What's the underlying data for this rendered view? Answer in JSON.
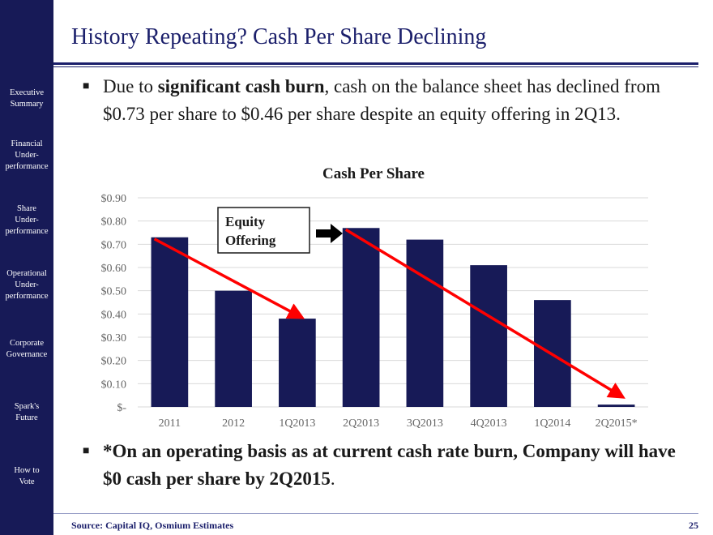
{
  "sidebar": {
    "items": [
      {
        "lines": [
          "Executive",
          "Summary"
        ]
      },
      {
        "lines": [
          "Financial",
          "Under-",
          "performance"
        ]
      },
      {
        "lines": [
          "Share",
          "Under-",
          "performance"
        ]
      },
      {
        "lines": [
          "Operational",
          "Under-",
          "performance"
        ]
      },
      {
        "lines": [
          "Corporate",
          "Governance"
        ]
      },
      {
        "lines": [
          "Spark's",
          "Future"
        ]
      },
      {
        "lines": [
          "How to",
          "Vote"
        ]
      }
    ]
  },
  "slide": {
    "title": "History Repeating? Cash Per Share Declining",
    "bullet1": {
      "pre": "Due to ",
      "bold": "significant cash burn",
      "post": ", cash on the balance sheet has declined from $0.73 per share to $0.46 per share despite an equity offering in 2Q13."
    },
    "bullet2": {
      "bold": "*On an operating basis as at current cash rate burn, Company will have $0 cash per share by 2Q2015",
      "post": "."
    },
    "footer_source": "Source: Capital IQ, Osmium Estimates",
    "page_number": "25"
  },
  "colors": {
    "sidebar_bg": "#171a57",
    "title": "#1b1f6b",
    "bar": "#171a57",
    "trend_arrow": "#ff0000"
  },
  "chart_data": {
    "type": "bar",
    "title": "Cash Per Share",
    "categories": [
      "2011",
      "2012",
      "1Q2013",
      "2Q2013",
      "3Q2013",
      "4Q2013",
      "1Q2014",
      "2Q2015*"
    ],
    "values": [
      0.73,
      0.5,
      0.38,
      0.77,
      0.72,
      0.61,
      0.46,
      0.01
    ],
    "ylim": [
      0,
      0.9
    ],
    "yticks": [
      0,
      0.1,
      0.2,
      0.3,
      0.4,
      0.5,
      0.6,
      0.7,
      0.8,
      0.9
    ],
    "ytick_labels": [
      "$-",
      "$0.10",
      "$0.20",
      "$0.30",
      "$0.40",
      "$0.50",
      "$0.60",
      "$0.70",
      "$0.80",
      "$0.90"
    ],
    "xlabel": "",
    "ylabel": "",
    "grid": true,
    "annotation": {
      "text_lines": [
        "Equity",
        "Offering"
      ],
      "points_to": "2Q2013"
    },
    "trend_arrows": [
      {
        "from": "2011",
        "to": "1Q2013"
      },
      {
        "from": "2Q2013",
        "to": "2Q2015*"
      }
    ]
  }
}
